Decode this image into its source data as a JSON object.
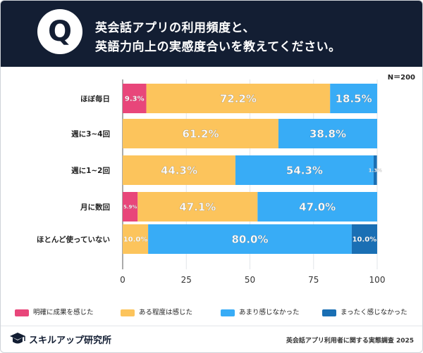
{
  "header": {
    "badge": "Q",
    "title_line1": "英会話アプリの利用頻度と、",
    "title_line2": "英語力向上の実感度合いを教えてください。"
  },
  "sample_size": "N＝200",
  "chart_data": {
    "type": "bar",
    "orientation": "horizontal",
    "stacked": true,
    "categories": [
      "ほぼ毎日",
      "週に3~4回",
      "週に1~2回",
      "月に数回",
      "ほとんど使っていない"
    ],
    "series": [
      {
        "name": "明確に成果を感じた",
        "color": "#e8467a",
        "values": [
          9.3,
          0,
          0,
          5.9,
          0
        ]
      },
      {
        "name": "ある程度は感じた",
        "color": "#fcc45c",
        "values": [
          72.2,
          61.2,
          44.3,
          47.1,
          10.0
        ]
      },
      {
        "name": "あまり感じなかった",
        "color": "#38acf6",
        "values": [
          18.5,
          38.8,
          54.3,
          47.0,
          80.0
        ]
      },
      {
        "name": "まったく感じなかった",
        "color": "#1a6fb4",
        "values": [
          0,
          0,
          1.3,
          0,
          10.0
        ]
      }
    ],
    "xlim": [
      0,
      100
    ],
    "xticks": [
      "0",
      "25",
      "50",
      "75",
      "100"
    ]
  },
  "legend": [
    {
      "label": "明確に成果を感じた",
      "color": "#e8467a"
    },
    {
      "label": "ある程度は感じた",
      "color": "#fcc45c"
    },
    {
      "label": "あまり感じなかった",
      "color": "#38acf6"
    },
    {
      "label": "まったく感じなかった",
      "color": "#1a6fb4"
    }
  ],
  "footer": {
    "logo_text": "スキルアップ研究所",
    "source": "英会話アプリ利用者に関する実態調査 2025"
  }
}
